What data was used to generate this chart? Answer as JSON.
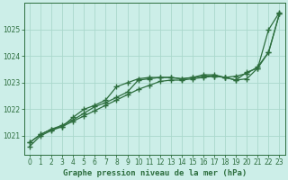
{
  "title": "Graphe pression niveau de la mer (hPa)",
  "bg_color": "#cceee8",
  "grid_color": "#aad8cc",
  "line_color": "#2d6e3e",
  "xlim": [
    -0.5,
    23.5
  ],
  "ylim": [
    1020.3,
    1026.0
  ],
  "xticks": [
    0,
    1,
    2,
    3,
    4,
    5,
    6,
    7,
    8,
    9,
    10,
    11,
    12,
    13,
    14,
    15,
    16,
    17,
    18,
    19,
    20,
    21,
    22,
    23
  ],
  "yticks": [
    1021,
    1022,
    1023,
    1024,
    1025
  ],
  "series1_x": [
    0,
    1,
    2,
    3,
    4,
    5,
    6,
    7,
    8,
    9,
    10,
    11,
    12,
    13,
    14,
    15,
    16,
    17,
    18,
    19,
    20,
    21,
    22,
    23
  ],
  "series1_y": [
    1020.75,
    1021.05,
    1021.25,
    1021.35,
    1021.55,
    1021.75,
    1021.95,
    1022.15,
    1022.35,
    1022.55,
    1022.75,
    1022.9,
    1023.05,
    1023.1,
    1023.1,
    1023.15,
    1023.2,
    1023.25,
    1023.2,
    1023.25,
    1023.35,
    1023.6,
    1024.15,
    1025.6
  ],
  "series2_x": [
    0,
    1,
    2,
    3,
    4,
    5,
    6,
    7,
    8,
    9,
    10,
    11,
    12,
    13,
    14,
    15,
    16,
    17,
    18,
    19,
    20,
    21,
    22,
    23
  ],
  "series2_y": [
    1020.75,
    1021.05,
    1021.25,
    1021.4,
    1021.6,
    1021.85,
    1022.1,
    1022.25,
    1022.45,
    1022.65,
    1023.1,
    1023.15,
    1023.2,
    1023.2,
    1023.15,
    1023.2,
    1023.25,
    1023.25,
    1023.2,
    1023.1,
    1023.15,
    1023.55,
    1024.15,
    1025.6
  ],
  "series3_x": [
    0,
    1,
    2,
    3,
    4,
    5,
    6,
    7,
    8,
    9,
    10,
    11,
    12,
    13,
    14,
    15,
    16,
    17,
    18,
    19,
    20,
    21,
    22,
    23
  ],
  "series3_y": [
    1020.6,
    1021.0,
    1021.2,
    1021.35,
    1021.7,
    1022.0,
    1022.15,
    1022.35,
    1022.85,
    1023.0,
    1023.15,
    1023.2,
    1023.2,
    1023.2,
    1023.15,
    1023.2,
    1023.3,
    1023.3,
    1023.2,
    1023.1,
    1023.4,
    1023.55,
    1025.0,
    1025.65
  ]
}
